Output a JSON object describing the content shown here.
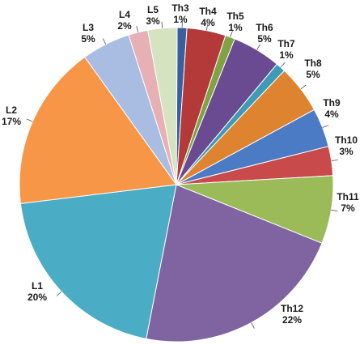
{
  "chart_data": {
    "type": "pie",
    "slices": [
      {
        "label": "Th3",
        "value": 1,
        "pct": "1%",
        "color": "#3a5f9e"
      },
      {
        "label": "Th4",
        "value": 4,
        "pct": "4%",
        "color": "#b33a38"
      },
      {
        "label": "Th5",
        "value": 1,
        "pct": "1%",
        "color": "#7fa343"
      },
      {
        "label": "Th6",
        "value": 5,
        "pct": "5%",
        "color": "#6a4b92"
      },
      {
        "label": "Th7",
        "value": 1,
        "pct": "1%",
        "color": "#3d9bb5"
      },
      {
        "label": "Th8",
        "value": 5,
        "pct": "5%",
        "color": "#de8330"
      },
      {
        "label": "Th9",
        "value": 4,
        "pct": "4%",
        "color": "#4a7bc4"
      },
      {
        "label": "Th10",
        "value": 3,
        "pct": "3%",
        "color": "#c84a4a"
      },
      {
        "label": "Th11",
        "value": 7,
        "pct": "7%",
        "color": "#9bbb59"
      },
      {
        "label": "Th12",
        "value": 22,
        "pct": "22%",
        "color": "#8064a2"
      },
      {
        "label": "L1",
        "value": 20,
        "pct": "20%",
        "color": "#4bacc6"
      },
      {
        "label": "L2",
        "value": 17,
        "pct": "17%",
        "color": "#f79646"
      },
      {
        "label": "L3",
        "value": 5,
        "pct": "5%",
        "color": "#a9bde3"
      },
      {
        "label": "L4",
        "value": 2,
        "pct": "2%",
        "color": "#e6b0b5"
      },
      {
        "label": "L5",
        "value": 3,
        "pct": "3%",
        "color": "#d5e3c1"
      }
    ]
  }
}
